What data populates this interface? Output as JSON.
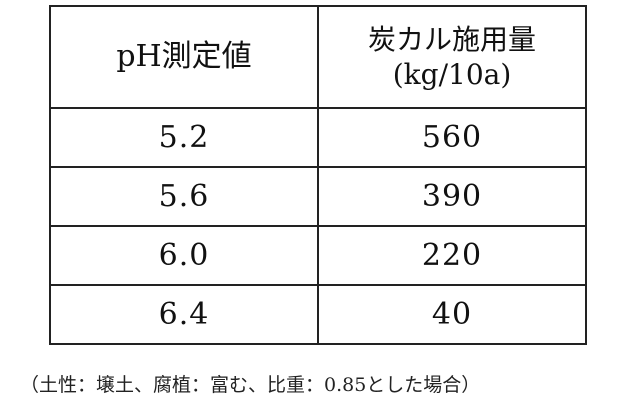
{
  "table": {
    "headers": {
      "ph": "pH測定値",
      "amount_line1": "炭カル施用量",
      "amount_line2": "(kg/10a)"
    },
    "rows": [
      {
        "ph": "5.2",
        "amount": "560"
      },
      {
        "ph": "5.6",
        "amount": "390"
      },
      {
        "ph": "6.0",
        "amount": "220"
      },
      {
        "ph": "6.4",
        "amount": "40"
      }
    ]
  },
  "note": "（土性：壌土、腐植：富む、比重：0.85とした場合）"
}
